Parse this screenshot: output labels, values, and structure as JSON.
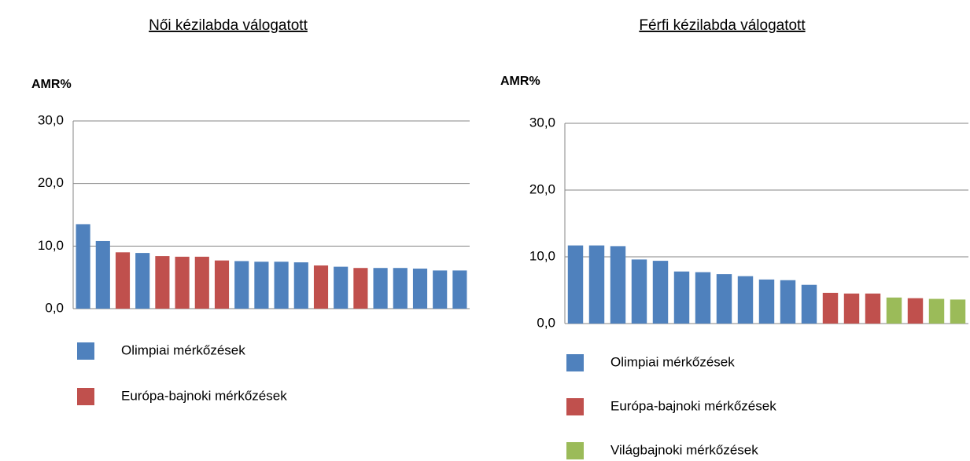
{
  "chart_data": [
    {
      "type": "bar",
      "title": "Női kézilabda válogatott",
      "y_label": "AMR%",
      "ylim": [
        0,
        30
      ],
      "yticks": [
        {
          "value": 0,
          "label": "0,0"
        },
        {
          "value": 10,
          "label": "10,0"
        },
        {
          "value": 20,
          "label": "20,0"
        },
        {
          "value": 30,
          "label": "30,0"
        }
      ],
      "grid": true,
      "series": [
        {
          "name": "Olimpiai mérkőzések",
          "color": "#4f81bd",
          "values": [
            13.5,
            10.8,
            null,
            8.9,
            null,
            null,
            null,
            null,
            7.6,
            7.5,
            7.5,
            7.4,
            null,
            6.7,
            null,
            6.5,
            6.5,
            6.4,
            6.1,
            6.1
          ]
        },
        {
          "name": "Európa-bajnoki mérkőzések",
          "color": "#c0504d",
          "values": [
            null,
            null,
            9.0,
            null,
            8.4,
            8.3,
            8.3,
            7.7,
            null,
            null,
            null,
            null,
            6.9,
            null,
            6.5,
            null,
            null,
            null,
            null,
            null
          ]
        }
      ]
    },
    {
      "type": "bar",
      "title": "Férfi kézilabda válogatott",
      "y_label": "AMR%",
      "ylim": [
        0,
        30
      ],
      "yticks": [
        {
          "value": 0,
          "label": "0,0"
        },
        {
          "value": 10,
          "label": "10,0"
        },
        {
          "value": 20,
          "label": "20,0"
        },
        {
          "value": 30,
          "label": "30,0"
        }
      ],
      "grid": true,
      "series": [
        {
          "name": "Olimpiai mérkőzések",
          "color": "#4f81bd",
          "values": [
            11.7,
            11.7,
            11.6,
            9.6,
            9.4,
            7.8,
            7.7,
            7.4,
            7.1,
            6.6,
            6.5,
            5.8,
            null,
            null,
            null,
            null,
            null,
            null,
            null
          ]
        },
        {
          "name": "Európa-bajnoki mérkőzések",
          "color": "#c0504d",
          "values": [
            null,
            null,
            null,
            null,
            null,
            null,
            null,
            null,
            null,
            null,
            null,
            null,
            4.6,
            4.5,
            4.5,
            null,
            3.8,
            null,
            null
          ]
        },
        {
          "name": "Világbajnoki mérkőzések",
          "color": "#9bbb59",
          "values": [
            null,
            null,
            null,
            null,
            null,
            null,
            null,
            null,
            null,
            null,
            null,
            null,
            null,
            null,
            null,
            3.9,
            null,
            3.7,
            3.6
          ]
        }
      ]
    }
  ]
}
